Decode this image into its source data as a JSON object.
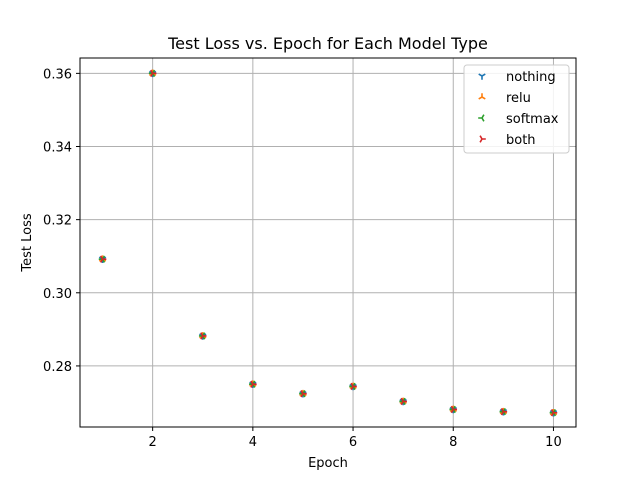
{
  "chart_data": {
    "type": "scatter",
    "title": "Test Loss vs. Epoch for Each Model Type",
    "xlabel": "Epoch",
    "ylabel": "Test Loss",
    "xlim": [
      0.55,
      10.45
    ],
    "ylim": [
      0.2633,
      0.3642
    ],
    "xticks": [
      2,
      4,
      6,
      8,
      10
    ],
    "xtick_labels": [
      "2",
      "4",
      "6",
      "8",
      "10"
    ],
    "yticks": [
      0.28,
      0.3,
      0.32,
      0.34,
      0.36
    ],
    "ytick_labels": [
      "0.28",
      "0.30",
      "0.32",
      "0.34",
      "0.36"
    ],
    "grid": true,
    "legend_position": "top-right",
    "x": [
      1,
      2,
      3,
      4,
      5,
      6,
      7,
      8,
      9,
      10
    ],
    "series": [
      {
        "name": "nothing",
        "marker": "tri_down",
        "color": "#1f77b4",
        "values": [
          0.3092,
          0.36,
          0.2882,
          0.275,
          0.2724,
          0.2744,
          0.2703,
          0.2681,
          0.2675,
          0.2672
        ]
      },
      {
        "name": "relu",
        "marker": "tri_up",
        "color": "#ff7f0e",
        "values": [
          0.3092,
          0.36,
          0.2882,
          0.275,
          0.2724,
          0.2744,
          0.2703,
          0.2681,
          0.2675,
          0.2672
        ]
      },
      {
        "name": "softmax",
        "marker": "tri_left",
        "color": "#2ca02c",
        "values": [
          0.3092,
          0.36,
          0.2882,
          0.275,
          0.2724,
          0.2744,
          0.2703,
          0.2681,
          0.2675,
          0.2672
        ]
      },
      {
        "name": "both",
        "marker": "tri_right",
        "color": "#d62728",
        "values": [
          0.3092,
          0.36,
          0.2882,
          0.275,
          0.2724,
          0.2744,
          0.2703,
          0.2681,
          0.2675,
          0.2672
        ]
      }
    ]
  }
}
